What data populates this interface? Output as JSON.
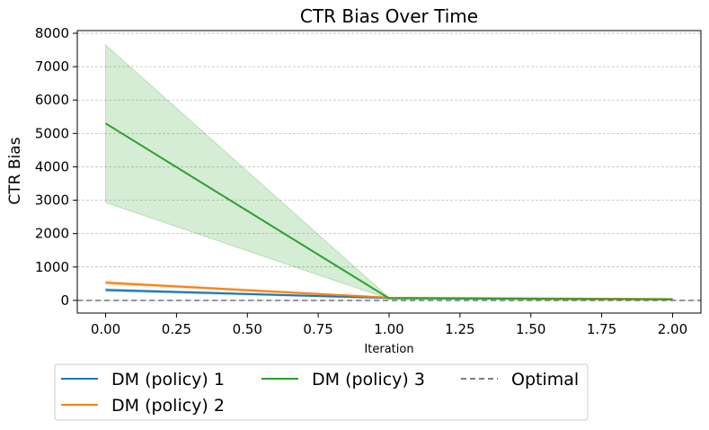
{
  "chart_data": {
    "type": "line",
    "title": "CTR Bias Over Time",
    "xlabel": "Iteration",
    "ylabel": "CTR Bias",
    "xlim": [
      -0.1,
      2.1
    ],
    "ylim": [
      -380,
      8080
    ],
    "xticks": [
      "0.00",
      "0.25",
      "0.50",
      "0.75",
      "1.00",
      "1.25",
      "1.50",
      "1.75",
      "2.00"
    ],
    "yticks": [
      "0",
      "1000",
      "2000",
      "3000",
      "4000",
      "5000",
      "6000",
      "7000",
      "8000"
    ],
    "grid": "horizontal dashed",
    "legend_position": "bottom",
    "series": [
      {
        "name": "DM (policy) 1",
        "color": "#1f77b4",
        "x": [
          0,
          1,
          2
        ],
        "y": [
          310,
          70,
          30
        ],
        "lower": [
          270,
          50,
          20
        ],
        "upper": [
          350,
          90,
          40
        ]
      },
      {
        "name": "DM (policy) 2",
        "color": "#ff7f0e",
        "x": [
          0,
          1,
          2
        ],
        "y": [
          530,
          80,
          40
        ],
        "lower": [
          490,
          60,
          30
        ],
        "upper": [
          570,
          100,
          50
        ]
      },
      {
        "name": "DM (policy) 3",
        "color": "#2ca02c",
        "x": [
          0,
          1,
          2
        ],
        "y": [
          5300,
          60,
          30
        ],
        "lower": [
          2930,
          40,
          20
        ],
        "upper": [
          7650,
          80,
          40
        ]
      }
    ],
    "reference_line": {
      "name": "Optimal",
      "y": 0,
      "color": "#7f7f7f",
      "style": "dashed"
    }
  }
}
